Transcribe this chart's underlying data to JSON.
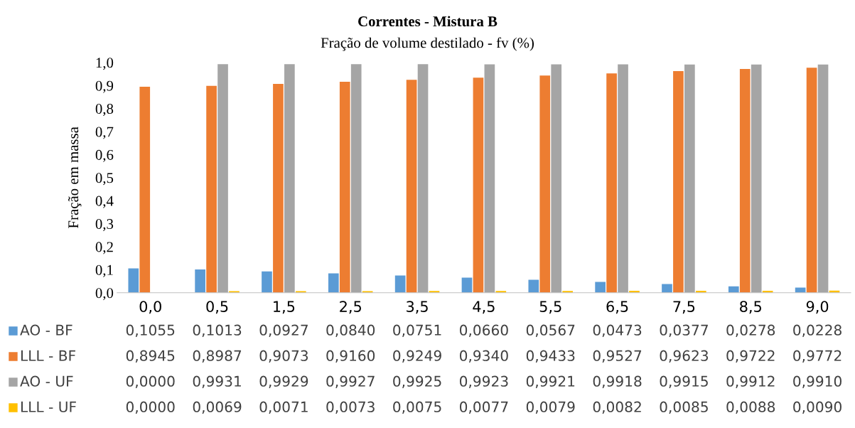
{
  "chart_data": {
    "type": "bar",
    "title": "Correntes - Mistura B",
    "subtitle": "Fração de volume destilado - fv (%)",
    "ylabel": "Fração em massa",
    "categories": [
      "0,0",
      "0,5",
      "1,5",
      "2,5",
      "3,5",
      "4,5",
      "5,5",
      "6,5",
      "7,5",
      "8,5",
      "9,0"
    ],
    "ylim": [
      0,
      1
    ],
    "yticks": [
      {
        "value": 0,
        "label": "0,0"
      },
      {
        "value": 0.1,
        "label": "0,1"
      },
      {
        "value": 0.2,
        "label": "0,2"
      },
      {
        "value": 0.3,
        "label": "0,3"
      },
      {
        "value": 0.4,
        "label": "0,4"
      },
      {
        "value": 0.5,
        "label": "0,5"
      },
      {
        "value": 0.6,
        "label": "0,6"
      },
      {
        "value": 0.7,
        "label": "0,7"
      },
      {
        "value": 0.8,
        "label": "0,8"
      },
      {
        "value": 0.9,
        "label": "0,9"
      },
      {
        "value": 1,
        "label": "1,0"
      }
    ],
    "grid": false,
    "legend": "bottom",
    "series": [
      {
        "name": "AO - BF",
        "color": "#5b9bd5",
        "values": [
          0.1055,
          0.1013,
          0.0927,
          0.084,
          0.0751,
          0.066,
          0.0567,
          0.0473,
          0.0377,
          0.0278,
          0.0228
        ],
        "value_labels": [
          "0,1055",
          "0,1013",
          "0,0927",
          "0,0840",
          "0,0751",
          "0,0660",
          "0,0567",
          "0,0473",
          "0,0377",
          "0,0278",
          "0,0228"
        ]
      },
      {
        "name": "LLL - BF",
        "color": "#ed7d31",
        "values": [
          0.8945,
          0.8987,
          0.9073,
          0.916,
          0.9249,
          0.934,
          0.9433,
          0.9527,
          0.9623,
          0.9722,
          0.9772
        ],
        "value_labels": [
          "0,8945",
          "0,8987",
          "0,9073",
          "0,9160",
          "0,9249",
          "0,9340",
          "0,9433",
          "0,9527",
          "0,9623",
          "0,9722",
          "0,9772"
        ]
      },
      {
        "name": "AO - UF",
        "color": "#a5a5a5",
        "values": [
          0.0,
          0.9931,
          0.9929,
          0.9927,
          0.9925,
          0.9923,
          0.9921,
          0.9918,
          0.9915,
          0.9912,
          0.991
        ],
        "value_labels": [
          "0,0000",
          "0,9931",
          "0,9929",
          "0,9927",
          "0,9925",
          "0,9923",
          "0,9921",
          "0,9918",
          "0,9915",
          "0,9912",
          "0,9910"
        ]
      },
      {
        "name": "LLL - UF",
        "color": "#ffc000",
        "values": [
          0.0,
          0.0069,
          0.0071,
          0.0073,
          0.0075,
          0.0077,
          0.0079,
          0.0082,
          0.0085,
          0.0088,
          0.009
        ],
        "value_labels": [
          "0,0000",
          "0,0069",
          "0,0071",
          "0,0073",
          "0,0075",
          "0,0077",
          "0,0079",
          "0,0082",
          "0,0085",
          "0,0088",
          "0,0090"
        ]
      }
    ]
  }
}
